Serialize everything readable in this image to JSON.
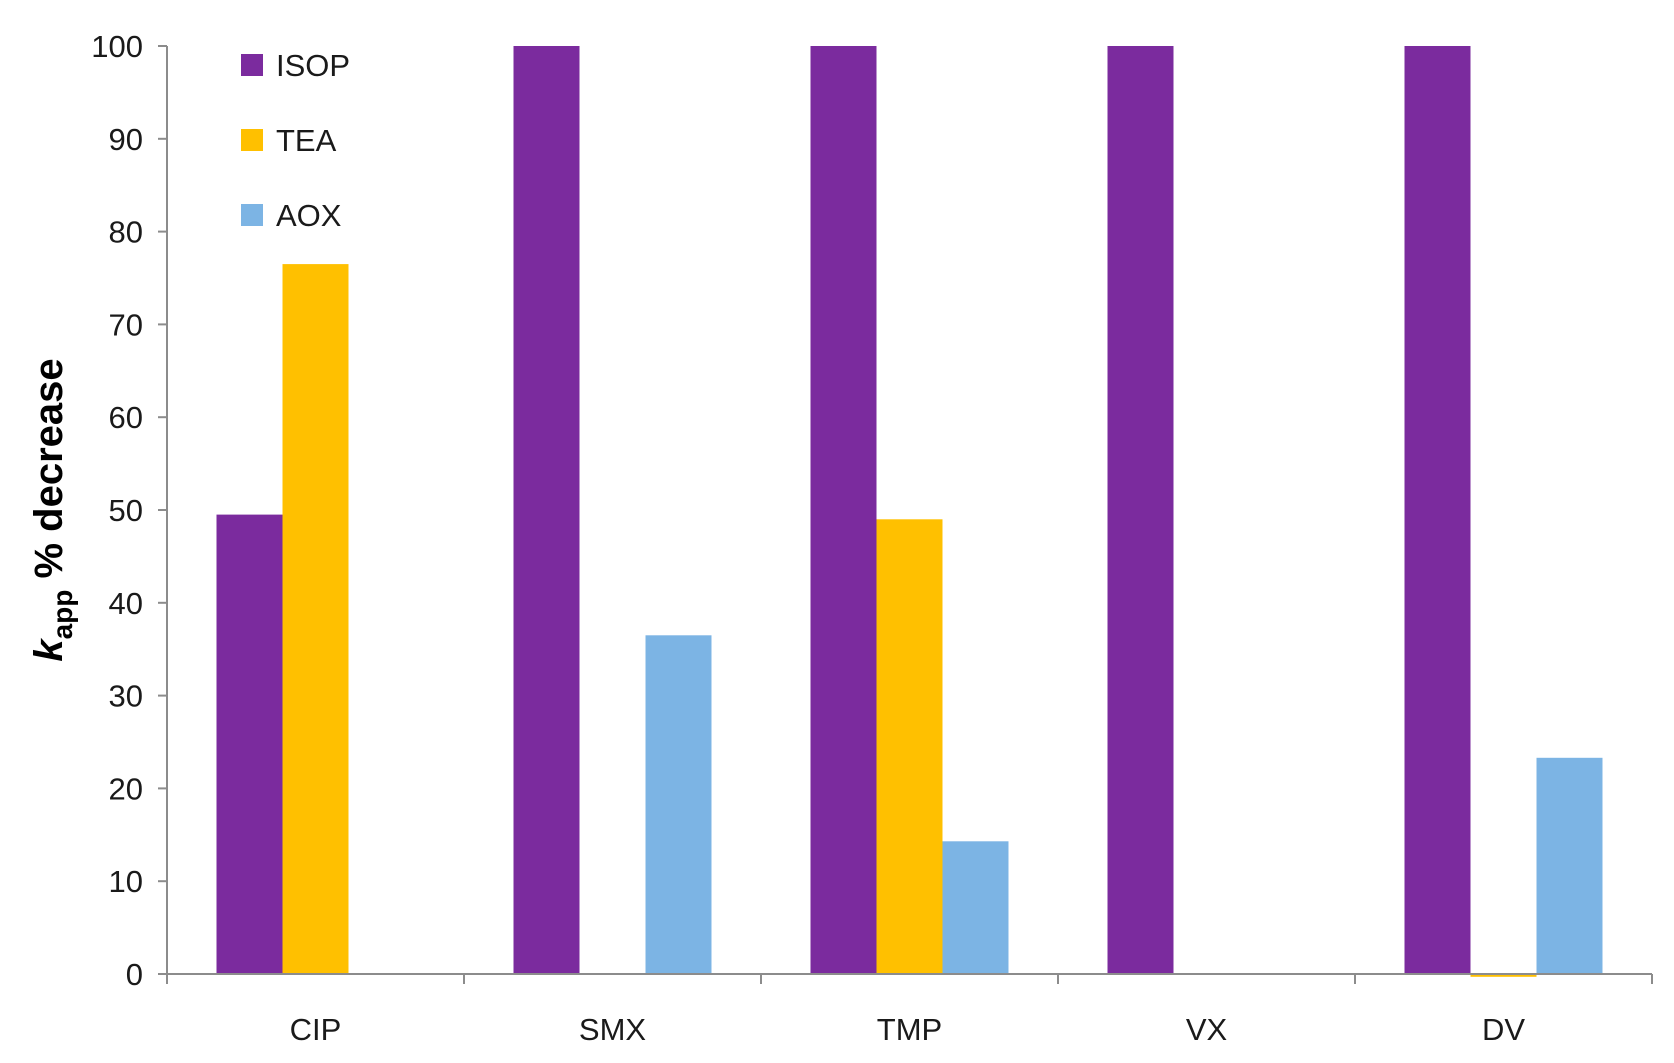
{
  "chart_data": {
    "type": "bar",
    "categories": [
      "CIP",
      "SMX",
      "TMP",
      "VX",
      "DV"
    ],
    "series": [
      {
        "name": "ISOP",
        "color": "#7B2B9E",
        "values": [
          49.5,
          100,
          100,
          100,
          100
        ]
      },
      {
        "name": "TEA",
        "color": "#FFC000",
        "values": [
          76.5,
          0,
          49,
          0,
          -0.3
        ]
      },
      {
        "name": "AOX",
        "color": "#7CB4E4",
        "values": [
          0,
          36.5,
          14.3,
          0,
          23.3
        ]
      }
    ],
    "ylabel_main": "k",
    "ylabel_sub": "app",
    "ylabel_rest": " % decrease",
    "ylim": [
      0,
      100
    ],
    "yticks": [
      0,
      10,
      20,
      30,
      40,
      50,
      60,
      70,
      80,
      90,
      100
    ],
    "grid": false,
    "legend_position": "top-left"
  }
}
